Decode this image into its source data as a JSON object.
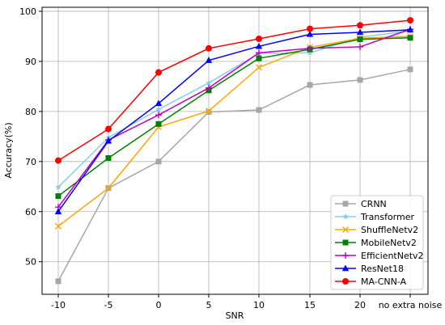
{
  "chart_data": {
    "type": "line",
    "title": "",
    "xlabel": "SNR",
    "ylabel": "Accuracy(%)",
    "categories": [
      "-10",
      "-5",
      "0",
      "5",
      "10",
      "15",
      "20",
      "no extra noise"
    ],
    "yticks": [
      50,
      60,
      70,
      80,
      90,
      100
    ],
    "ylim": [
      43.5,
      100.8
    ],
    "grid": true,
    "legend_position": "lower-right",
    "series": [
      {
        "name": "CRNN",
        "color": "#a6a6a6",
        "marker": "square",
        "values": [
          46.1,
          64.7,
          70.0,
          79.9,
          80.3,
          85.3,
          86.3,
          88.4
        ]
      },
      {
        "name": "Transformer",
        "color": "#87ceeb",
        "marker": "star",
        "values": [
          64.9,
          74.8,
          80.4,
          85.7,
          91.6,
          91.7,
          94.8,
          96.1
        ]
      },
      {
        "name": "ShuffleNetv2",
        "color": "#ffa500",
        "marker": "x",
        "values": [
          57.1,
          64.7,
          76.9,
          80.1,
          88.8,
          92.8,
          94.6,
          95.0
        ]
      },
      {
        "name": "MobileNetv2",
        "color": "#008000",
        "marker": "square",
        "values": [
          63.1,
          70.7,
          77.5,
          84.2,
          90.6,
          92.4,
          94.4,
          94.7
        ]
      },
      {
        "name": "EfficientNetv2",
        "color": "#bf00bf",
        "marker": "plus",
        "values": [
          60.9,
          74.3,
          79.3,
          84.7,
          91.7,
          92.6,
          92.9,
          96.4
        ]
      },
      {
        "name": "ResNet18",
        "color": "#0000ff",
        "marker": "triangle",
        "values": [
          60.0,
          74.1,
          81.6,
          90.2,
          93.0,
          95.4,
          95.8,
          96.3
        ]
      },
      {
        "name": "MA-CNN-A",
        "color": "#ff0000",
        "marker": "circle",
        "values": [
          70.2,
          76.5,
          87.8,
          92.6,
          94.5,
          96.5,
          97.2,
          98.2
        ]
      }
    ]
  }
}
